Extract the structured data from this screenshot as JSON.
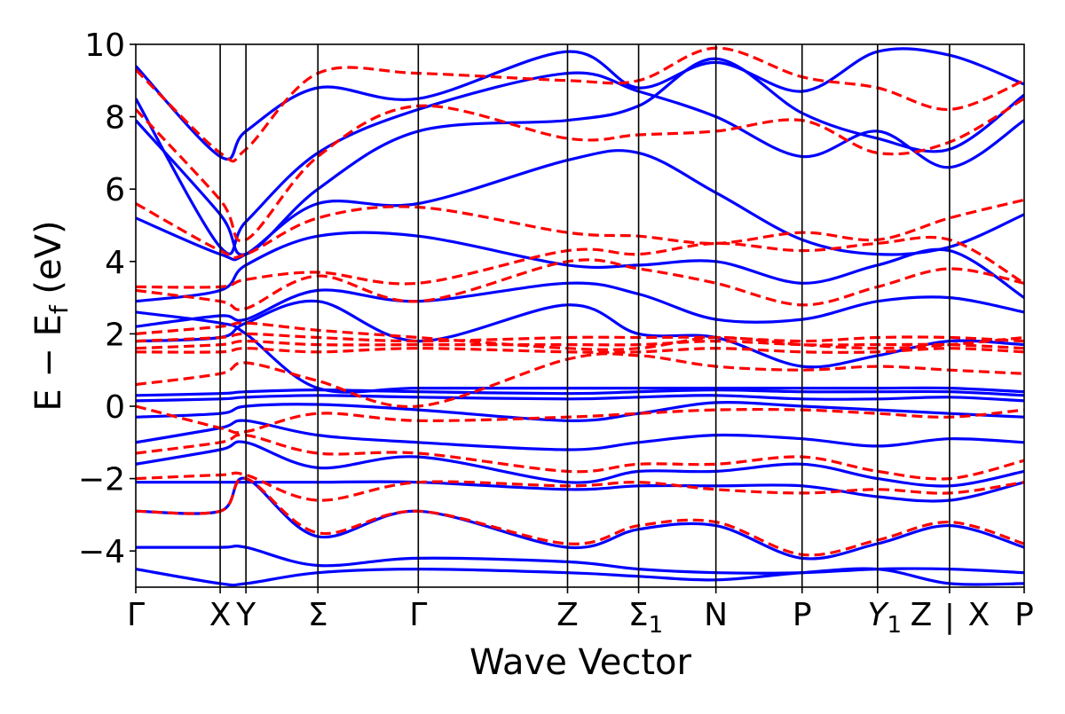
{
  "chart_data": {
    "type": "line",
    "title": "",
    "xlabel": "Wave Vector",
    "ylabel": "E − E",
    "ylabel_subscript": "f",
    "ylabel_unit": " (eV)",
    "xlim": [
      0,
      1
    ],
    "ylim": [
      -5,
      10
    ],
    "yticks": [
      {
        "value": 10,
        "label": "10"
      },
      {
        "value": 8,
        "label": "8"
      },
      {
        "value": 6,
        "label": "6"
      },
      {
        "value": 4,
        "label": "4"
      },
      {
        "value": 2,
        "label": "2"
      },
      {
        "value": 0,
        "label": "0"
      },
      {
        "value": -2,
        "label": "−2"
      },
      {
        "value": -4,
        "label": "−4"
      }
    ],
    "kpoints": [
      {
        "pos": 0.0,
        "label": "Γ"
      },
      {
        "pos": 0.095,
        "label": "X"
      },
      {
        "pos": 0.124,
        "label": "Y"
      },
      {
        "pos": 0.205,
        "label": "Σ"
      },
      {
        "pos": 0.318,
        "label": "Γ"
      },
      {
        "pos": 0.486,
        "label": "Z"
      },
      {
        "pos": 0.566,
        "label": "Σ",
        "sub": "1"
      },
      {
        "pos": 0.653,
        "label": "N"
      },
      {
        "pos": 0.75,
        "label": "P"
      },
      {
        "pos": 0.835,
        "label": "Y",
        "sub": "1"
      },
      {
        "pos": 0.916,
        "label": "Z | X",
        "tick_label": "Z"
      },
      {
        "pos": 1.0,
        "label": "P"
      }
    ],
    "break_label": "|",
    "break_after_label": "X",
    "grid": false,
    "legend": "none",
    "colors": {
      "series_a": "#0000ff",
      "series_b": "#ff0000"
    },
    "series": [
      {
        "style": "solid",
        "color": "#0000ff",
        "bands": [
          {
            "x": [
              0,
              0.095,
              0.124,
              0.205,
              0.318,
              0.486,
              0.566,
              0.653,
              0.75,
              0.835,
              0.916,
              1
            ],
            "y": [
              0.3,
              0.35,
              0.4,
              0.45,
              0.4,
              0.35,
              0.4,
              0.45,
              0.4,
              0.4,
              0.4,
              0.3
            ]
          },
          {
            "x": [
              0,
              0.095,
              0.124,
              0.205,
              0.318,
              0.486,
              0.566,
              0.653,
              0.75,
              0.835,
              0.916,
              1
            ],
            "y": [
              0.15,
              0.2,
              0.25,
              0.3,
              0.25,
              0.2,
              0.25,
              0.3,
              0.2,
              0.2,
              0.25,
              0.15
            ]
          },
          {
            "x": [
              0,
              0.095,
              0.124,
              0.205,
              0.318,
              0.486,
              0.566,
              0.653,
              0.75,
              0.835,
              0.916,
              1
            ],
            "y": [
              -0.3,
              -0.2,
              0.0,
              0.05,
              -0.1,
              -0.4,
              -0.2,
              0.1,
              0.0,
              -0.1,
              -0.2,
              -0.3
            ]
          },
          {
            "x": [
              0,
              0.095,
              0.124,
              0.205,
              0.318,
              0.486,
              0.566,
              0.653,
              0.75,
              0.835,
              0.916,
              1
            ],
            "y": [
              -1.0,
              -0.6,
              -0.4,
              -0.8,
              -1.0,
              -1.2,
              -1.0,
              -0.8,
              -0.9,
              -1.1,
              -0.9,
              -1.0
            ]
          },
          {
            "x": [
              0,
              0.095,
              0.124,
              0.205,
              0.318,
              0.486,
              0.566,
              0.653,
              0.75,
              0.835,
              0.916,
              1
            ],
            "y": [
              -1.6,
              -1.2,
              -1.0,
              -1.7,
              -1.4,
              -2.1,
              -1.8,
              -1.8,
              -1.6,
              -2.0,
              -2.2,
              -1.8
            ]
          },
          {
            "x": [
              0,
              0.095,
              0.124,
              0.205,
              0.318,
              0.486,
              0.566,
              0.653,
              0.75,
              0.835,
              0.916,
              1
            ],
            "y": [
              -2.1,
              -2.1,
              -2.1,
              -2.1,
              -2.1,
              -2.3,
              -2.2,
              -2.2,
              -2.2,
              -2.5,
              -2.6,
              -2.1
            ]
          },
          {
            "x": [
              0,
              0.095,
              0.124,
              0.205,
              0.318,
              0.486,
              0.566,
              0.653,
              0.75,
              0.835,
              0.916,
              1
            ],
            "y": [
              -2.9,
              -2.9,
              -2.0,
              -3.6,
              -2.9,
              -3.9,
              -3.4,
              -3.3,
              -4.2,
              -3.8,
              -3.3,
              -3.9
            ]
          },
          {
            "x": [
              0,
              0.095,
              0.124,
              0.205,
              0.318,
              0.486,
              0.566,
              0.653,
              0.75,
              0.835,
              0.916,
              1
            ],
            "y": [
              -3.9,
              -3.9,
              -3.9,
              -4.4,
              -4.2,
              -4.3,
              -4.5,
              -4.6,
              -4.6,
              -4.5,
              -4.5,
              -4.6
            ]
          },
          {
            "x": [
              0,
              0.095,
              0.124,
              0.205,
              0.318,
              0.486,
              0.566,
              0.653,
              0.75,
              0.835,
              0.916,
              1
            ],
            "y": [
              -4.5,
              -4.9,
              -4.9,
              -4.6,
              -4.5,
              -4.6,
              -4.7,
              -4.8,
              -4.6,
              -4.5,
              -4.9,
              -4.9
            ]
          },
          {
            "x": [
              0,
              0.095,
              0.124,
              0.205,
              0.318,
              0.486,
              0.566,
              0.653,
              0.75,
              0.835,
              0.916,
              1
            ],
            "y": [
              1.8,
              1.9,
              2.3,
              2.9,
              1.8,
              2.8,
              2.0,
              1.9,
              1.1,
              1.4,
              1.8,
              1.7
            ]
          },
          {
            "x": [
              0,
              0.095,
              0.124,
              0.205,
              0.318,
              0.486,
              0.566,
              0.653,
              0.75,
              0.835,
              0.916,
              1
            ],
            "y": [
              2.2,
              2.5,
              2.4,
              3.2,
              2.9,
              3.4,
              3.1,
              2.4,
              2.4,
              2.9,
              3.0,
              2.6
            ]
          },
          {
            "x": [
              0,
              0.095,
              0.124,
              0.205,
              0.318,
              0.486,
              0.566,
              0.653,
              0.75,
              0.835,
              0.916,
              1
            ],
            "y": [
              2.9,
              3.2,
              3.9,
              4.7,
              4.7,
              3.9,
              3.9,
              4.0,
              3.4,
              3.9,
              4.3,
              3.0
            ]
          },
          {
            "x": [
              0,
              0.095,
              0.124,
              0.205,
              0.318,
              0.486,
              0.566,
              0.653,
              0.75,
              0.835,
              0.916,
              1
            ],
            "y": [
              5.2,
              4.2,
              4.2,
              5.6,
              5.6,
              6.8,
              7.0,
              5.9,
              4.6,
              4.2,
              4.4,
              5.3
            ]
          },
          {
            "x": [
              0,
              0.095,
              0.124,
              0.205,
              0.318,
              0.486,
              0.566,
              0.653,
              0.75,
              0.835,
              0.916,
              1
            ],
            "y": [
              8.5,
              4.4,
              5.1,
              7.0,
              8.2,
              9.2,
              8.7,
              8.0,
              6.9,
              7.6,
              6.6,
              7.9
            ]
          },
          {
            "x": [
              0,
              0.095,
              0.124,
              0.205,
              0.318,
              0.486,
              0.566,
              0.653,
              0.75,
              0.835,
              0.916,
              1
            ],
            "y": [
              9.4,
              6.9,
              7.6,
              8.8,
              8.5,
              9.8,
              8.8,
              9.5,
              8.7,
              9.8,
              9.7,
              8.9
            ]
          },
          {
            "x": [
              0,
              0.095,
              0.124,
              0.205,
              0.318,
              0.486,
              0.566,
              0.653,
              0.75,
              0.835,
              0.916,
              1
            ],
            "y": [
              2.6,
              2.3,
              2.0,
              0.5,
              0.5,
              0.5,
              0.5,
              0.5,
              0.5,
              0.5,
              0.5,
              0.4
            ]
          },
          {
            "x": [
              0,
              0.095,
              0.124,
              0.205,
              0.318,
              0.486,
              0.566,
              0.653,
              0.75,
              0.835,
              0.916,
              1
            ],
            "y": [
              7.9,
              5.3,
              4.2,
              6.0,
              7.6,
              7.9,
              8.3,
              9.6,
              8.1,
              7.4,
              7.1,
              8.6
            ]
          }
        ]
      },
      {
        "style": "dashed",
        "color": "#ff0000",
        "bands": [
          {
            "x": [
              0,
              0.095,
              0.124,
              0.205,
              0.318,
              0.486,
              0.566,
              0.653,
              0.75,
              0.835,
              0.916,
              1
            ],
            "y": [
              1.5,
              1.5,
              1.6,
              1.5,
              1.6,
              1.5,
              1.5,
              1.6,
              1.5,
              1.5,
              1.6,
              1.5
            ]
          },
          {
            "x": [
              0,
              0.095,
              0.124,
              0.205,
              0.318,
              0.486,
              0.566,
              0.653,
              0.75,
              0.835,
              0.916,
              1
            ],
            "y": [
              1.6,
              1.7,
              1.8,
              1.7,
              1.7,
              1.7,
              1.7,
              1.8,
              1.7,
              1.7,
              1.7,
              1.6
            ]
          },
          {
            "x": [
              0,
              0.095,
              0.124,
              0.205,
              0.318,
              0.486,
              0.566,
              0.653,
              0.75,
              0.835,
              0.916,
              1
            ],
            "y": [
              1.8,
              1.9,
              2.0,
              1.9,
              1.8,
              1.9,
              1.9,
              1.9,
              1.8,
              1.9,
              1.9,
              1.8
            ]
          },
          {
            "x": [
              0,
              0.095,
              0.124,
              0.205,
              0.318,
              0.486,
              0.566,
              0.653,
              0.75,
              0.835,
              0.916,
              1
            ],
            "y": [
              2.0,
              2.2,
              2.3,
              2.1,
              1.9,
              1.6,
              1.6,
              1.9,
              1.7,
              1.6,
              1.7,
              1.9
            ]
          },
          {
            "x": [
              0,
              0.095,
              0.124,
              0.205,
              0.318,
              0.486,
              0.566,
              0.653,
              0.75,
              0.835,
              0.916,
              1
            ],
            "y": [
              3.2,
              2.9,
              2.7,
              3.6,
              2.9,
              4.0,
              3.8,
              3.4,
              2.8,
              3.3,
              3.8,
              3.4
            ]
          },
          {
            "x": [
              0,
              0.095,
              0.124,
              0.205,
              0.318,
              0.486,
              0.566,
              0.653,
              0.75,
              0.835,
              0.916,
              1
            ],
            "y": [
              3.3,
              3.3,
              3.5,
              3.7,
              3.4,
              4.3,
              4.2,
              4.5,
              4.3,
              4.5,
              4.6,
              3.4
            ]
          },
          {
            "x": [
              0,
              0.095,
              0.124,
              0.205,
              0.318,
              0.486,
              0.566,
              0.653,
              0.75,
              0.835,
              0.916,
              1
            ],
            "y": [
              0.6,
              0.9,
              1.2,
              0.7,
              0.0,
              1.3,
              1.4,
              1.1,
              1.0,
              1.1,
              1.0,
              0.9
            ]
          },
          {
            "x": [
              0,
              0.095,
              0.124,
              0.205,
              0.318,
              0.486,
              0.566,
              0.653,
              0.75,
              0.835,
              0.916,
              1
            ],
            "y": [
              0.0,
              -0.6,
              -0.7,
              -0.2,
              -0.4,
              -0.3,
              -0.2,
              -0.1,
              -0.1,
              -0.2,
              -0.3,
              -0.1
            ]
          },
          {
            "x": [
              0,
              0.095,
              0.124,
              0.205,
              0.318,
              0.486,
              0.566,
              0.653,
              0.75,
              0.835,
              0.916,
              1
            ],
            "y": [
              -1.3,
              -1.0,
              -0.8,
              -1.3,
              -1.3,
              -1.8,
              -1.6,
              -1.6,
              -1.4,
              -1.8,
              -2.0,
              -1.5
            ]
          },
          {
            "x": [
              0,
              0.095,
              0.124,
              0.205,
              0.318,
              0.486,
              0.566,
              0.653,
              0.75,
              0.835,
              0.916,
              1
            ],
            "y": [
              -2.0,
              -1.9,
              -1.9,
              -2.6,
              -2.1,
              -2.2,
              -2.1,
              -2.3,
              -2.4,
              -2.3,
              -2.4,
              -2.1
            ]
          },
          {
            "x": [
              0,
              0.095,
              0.124,
              0.205,
              0.318,
              0.486,
              0.566,
              0.653,
              0.75,
              0.835,
              0.916,
              1
            ],
            "y": [
              -2.9,
              -2.9,
              -2.0,
              -3.5,
              -2.9,
              -3.8,
              -3.3,
              -3.2,
              -4.1,
              -3.7,
              -3.2,
              -3.8
            ]
          },
          {
            "x": [
              0,
              0.095,
              0.124,
              0.205,
              0.318,
              0.486,
              0.566,
              0.653,
              0.75,
              0.835,
              0.916,
              1
            ],
            "y": [
              5.6,
              4.3,
              4.2,
              5.2,
              5.5,
              4.8,
              4.7,
              4.5,
              4.8,
              4.6,
              5.2,
              5.7
            ]
          },
          {
            "x": [
              0,
              0.095,
              0.124,
              0.205,
              0.318,
              0.486,
              0.566,
              0.653,
              0.75,
              0.835,
              0.916,
              1
            ],
            "y": [
              8.2,
              5.7,
              4.6,
              6.9,
              8.3,
              7.4,
              7.5,
              7.6,
              7.9,
              7.0,
              7.3,
              8.5
            ]
          },
          {
            "x": [
              0,
              0.095,
              0.124,
              0.205,
              0.318,
              0.486,
              0.566,
              0.653,
              0.75,
              0.835,
              0.916,
              1
            ],
            "y": [
              9.3,
              7.0,
              7.1,
              9.2,
              9.2,
              9.0,
              9.0,
              9.9,
              9.1,
              8.8,
              8.2,
              9.0
            ]
          }
        ]
      }
    ]
  }
}
